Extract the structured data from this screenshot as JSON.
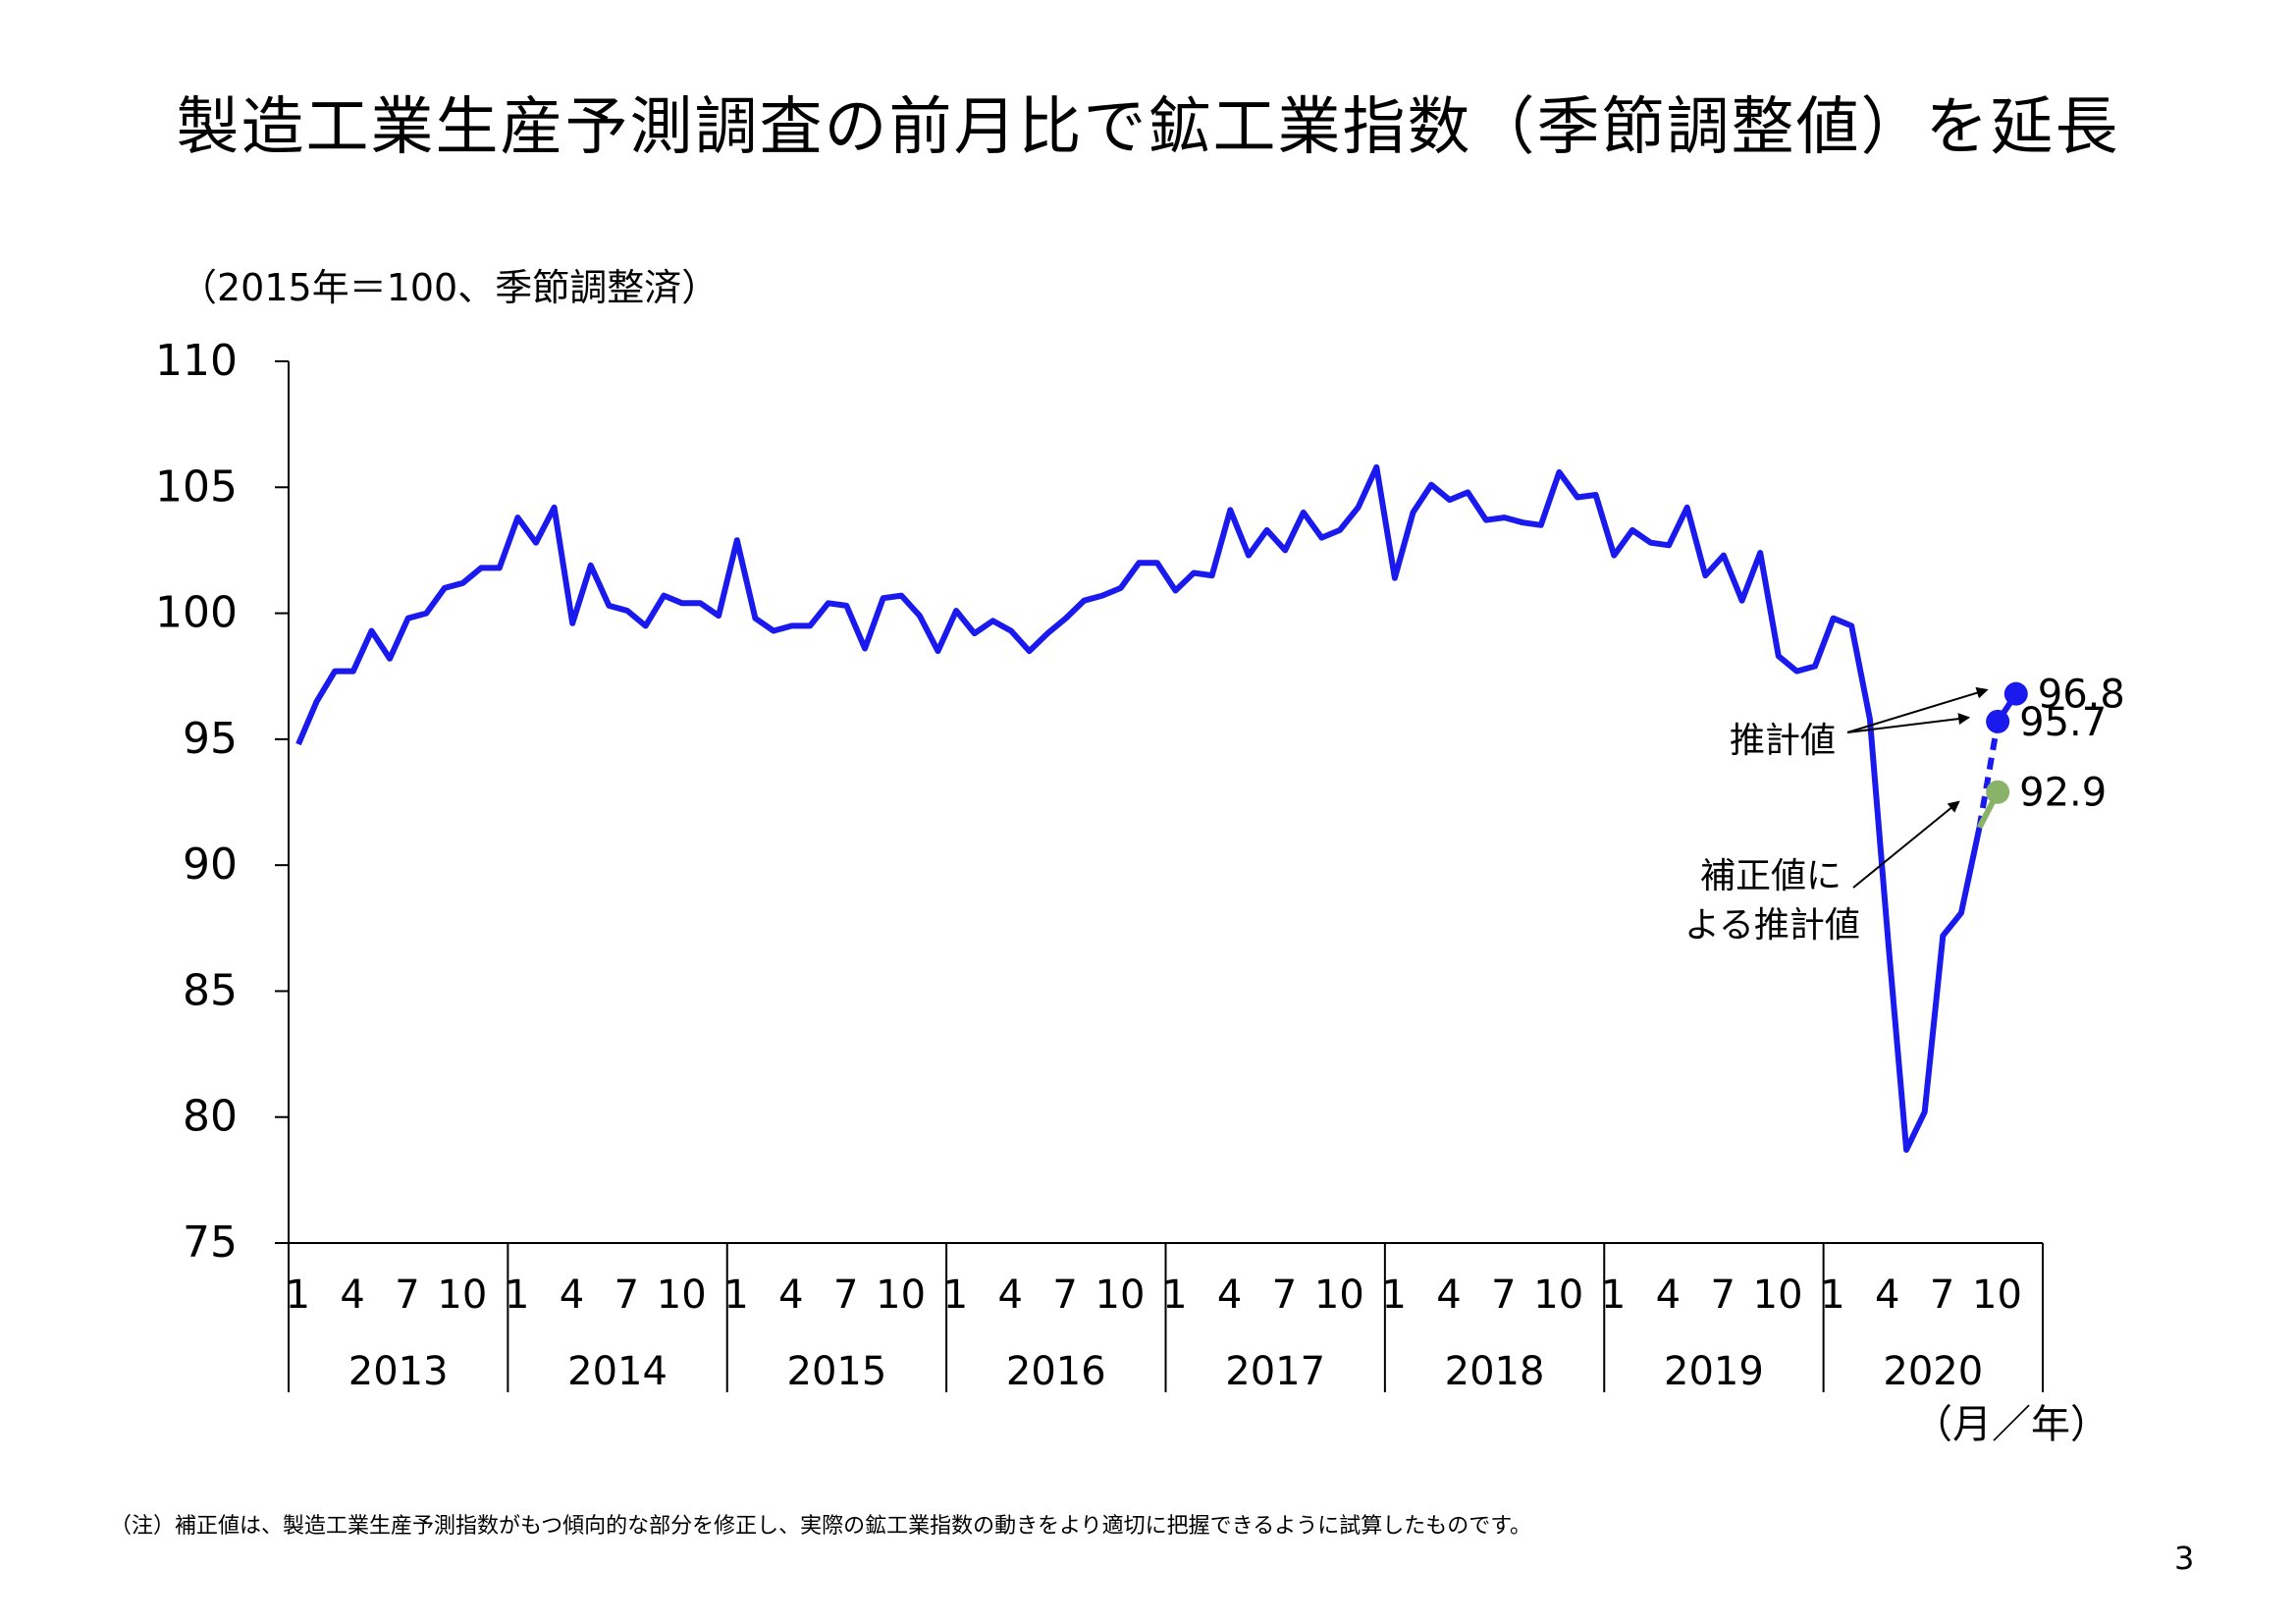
{
  "title": "製造工業生産予測調査の前月比で鉱工業指数（季節調整値）を延長",
  "unit_label": "（2015年＝100、季節調整済）",
  "footnote": "（注）補正値は、製造工業生産予測指数がもつ傾向的な部分を修正し、実際の鉱工業指数の動きをより適切に把握できるように試算したものです。",
  "page_number": "3",
  "chart_data": {
    "type": "line",
    "ylim": [
      75,
      110
    ],
    "yticks": [
      "75",
      "80",
      "85",
      "90",
      "95",
      "100",
      "105",
      "110"
    ],
    "month_ticks": [
      "1",
      "4",
      "7",
      "10"
    ],
    "years": [
      "2013",
      "2014",
      "2015",
      "2016",
      "2017",
      "2018",
      "2019",
      "2020"
    ],
    "x_axis_unit": "（月／年）",
    "series": [
      {
        "color": "#1a1aee",
        "start": "2013-01",
        "values": [
          94.8,
          96.5,
          97.7,
          97.7,
          99.3,
          98.2,
          99.8,
          100.0,
          101.0,
          101.2,
          101.8,
          101.8,
          103.8,
          102.8,
          104.2,
          99.6,
          101.9,
          100.3,
          100.1,
          99.5,
          100.7,
          100.4,
          100.4,
          99.9,
          102.9,
          99.8,
          99.3,
          99.5,
          99.5,
          100.4,
          100.3,
          98.6,
          100.6,
          100.7,
          99.9,
          98.5,
          100.1,
          99.2,
          99.7,
          99.3,
          98.5,
          99.2,
          99.8,
          100.5,
          100.7,
          101.0,
          102.0,
          102.0,
          100.9,
          101.6,
          101.5,
          104.1,
          102.3,
          103.3,
          102.5,
          104.0,
          103.0,
          103.3,
          104.2,
          105.8,
          101.4,
          104.0,
          105.1,
          104.5,
          104.8,
          103.7,
          103.8,
          103.6,
          103.5,
          105.6,
          104.6,
          104.7,
          102.3,
          103.3,
          102.8,
          102.7,
          104.2,
          101.5,
          102.3,
          100.5,
          102.4,
          98.3,
          97.7,
          97.9,
          99.8,
          99.5,
          95.8,
          87.0,
          78.7,
          80.2,
          87.2,
          88.1,
          91.5
        ]
      },
      {
        "color": "#1a1aee",
        "dashed": true,
        "x": [
          "2020-09",
          "2020-10",
          "2020-11"
        ],
        "values": [
          91.5,
          95.7,
          96.8
        ]
      },
      {
        "color": "#8ab36a",
        "x": [
          "2020-09",
          "2020-10"
        ],
        "values": [
          91.5,
          92.9
        ]
      }
    ],
    "points": [
      {
        "x": "2020-11",
        "value": 96.8,
        "label": "96.8",
        "color": "#1a1aee"
      },
      {
        "x": "2020-10",
        "value": 95.7,
        "label": "95.7",
        "color": "#1a1aee"
      },
      {
        "x": "2020-10",
        "value": 92.9,
        "label": "92.9",
        "color": "#8ab36a"
      }
    ],
    "annotations": [
      {
        "text": "推計値",
        "targets": [
          "96.8",
          "95.7"
        ]
      },
      {
        "lines": [
          "補正値に",
          "よる推計値"
        ],
        "targets": [
          "92.9"
        ]
      }
    ]
  }
}
